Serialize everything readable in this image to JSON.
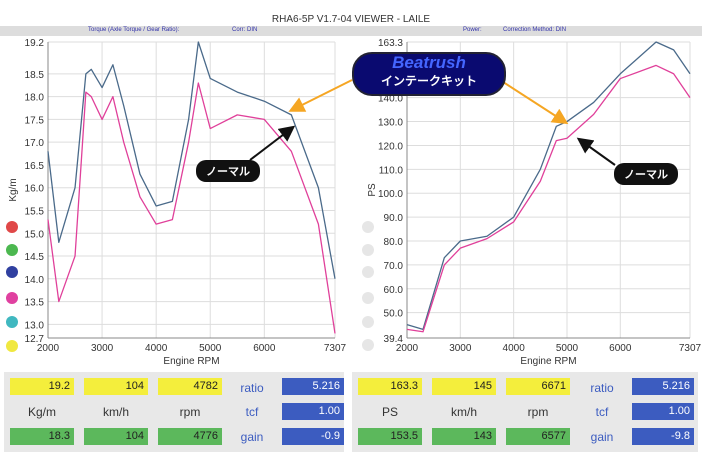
{
  "title": "RHA6-5P V1.7-04  VIEWER - LAILE",
  "header": {
    "torque": "Torque (Axle Torque / Gear Ratio):",
    "corr": "Corr: DIN",
    "power": "Power:",
    "method": "Correction Method: DIN"
  },
  "annotations": {
    "brand": "Beatrush",
    "product": "インテークキット",
    "normal_left": "ノーマル",
    "normal_right": "ノーマル"
  },
  "colors": {
    "beatrush": "#4a6a8a",
    "normal": "#e0409a",
    "arrow": "#f5a623"
  },
  "chart_data": [
    {
      "type": "line",
      "title": "Torque",
      "xlabel": "Engine RPM",
      "ylabel": "Kg/m",
      "xlim": [
        2000,
        7307
      ],
      "ylim": [
        12.7,
        19.2
      ],
      "xticks": [
        "2000",
        "3000",
        "4000",
        "5000",
        "6000",
        "7307"
      ],
      "yticks": [
        "19.2",
        "18.5",
        "18.0",
        "17.5",
        "17.0",
        "16.5",
        "16.0",
        "15.5",
        "15.0",
        "14.5",
        "14.0",
        "13.5",
        "13.0",
        "12.7"
      ],
      "x": [
        2000,
        2200,
        2500,
        2700,
        2800,
        3000,
        3200,
        3400,
        3700,
        4000,
        4300,
        4600,
        4780,
        5000,
        5500,
        6000,
        6500,
        7000,
        7307
      ],
      "series": [
        {
          "name": "Beatrush",
          "values": [
            16.8,
            14.8,
            16.0,
            18.5,
            18.6,
            18.2,
            18.7,
            17.8,
            16.3,
            15.6,
            15.7,
            17.5,
            19.2,
            18.4,
            18.1,
            17.9,
            17.6,
            16.0,
            14.0
          ]
        },
        {
          "name": "ノーマル",
          "values": [
            15.3,
            13.5,
            14.5,
            18.1,
            18.0,
            17.5,
            18.0,
            17.0,
            15.8,
            15.2,
            15.3,
            17.0,
            18.3,
            17.3,
            17.6,
            17.5,
            16.8,
            15.2,
            12.8
          ]
        }
      ]
    },
    {
      "type": "line",
      "title": "Power",
      "xlabel": "Engine RPM",
      "ylabel": "PS",
      "xlim": [
        2000,
        7307
      ],
      "ylim": [
        39.4,
        163.3
      ],
      "xticks": [
        "2000",
        "3000",
        "4000",
        "5000",
        "6000",
        "7307"
      ],
      "yticks": [
        "163.3",
        "140.0",
        "130.0",
        "120.0",
        "110.0",
        "100.0",
        "90.0",
        "80.0",
        "70.0",
        "60.0",
        "50.0",
        "39.4"
      ],
      "x": [
        2000,
        2300,
        2700,
        3000,
        3500,
        4000,
        4500,
        4800,
        5000,
        5500,
        6000,
        6671,
        7000,
        7307
      ],
      "series": [
        {
          "name": "Beatrush",
          "values": [
            45,
            43,
            73,
            80,
            82,
            90,
            110,
            128,
            130,
            138,
            150,
            163.3,
            160,
            150
          ]
        },
        {
          "name": "ノーマル",
          "values": [
            43,
            42,
            70,
            77,
            81,
            88,
            105,
            122,
            123,
            133,
            148,
            153.5,
            150,
            140
          ]
        }
      ]
    }
  ],
  "readouts": {
    "left": {
      "max": [
        "19.2",
        "104",
        "4782"
      ],
      "units": [
        "Kg/m",
        "km/h",
        "rpm"
      ],
      "cur": [
        "18.3",
        "104",
        "4776"
      ],
      "labels": [
        "ratio",
        "tcf",
        "gain"
      ],
      "vals": [
        "5.216",
        "1.00",
        "-0.9"
      ]
    },
    "right": {
      "max": [
        "163.3",
        "145",
        "6671"
      ],
      "units": [
        "PS",
        "km/h",
        "rpm"
      ],
      "cur": [
        "153.5",
        "143",
        "6577"
      ],
      "labels": [
        "ratio",
        "tcf",
        "gain"
      ],
      "vals": [
        "5.216",
        "1.00",
        "-9.8"
      ]
    }
  }
}
